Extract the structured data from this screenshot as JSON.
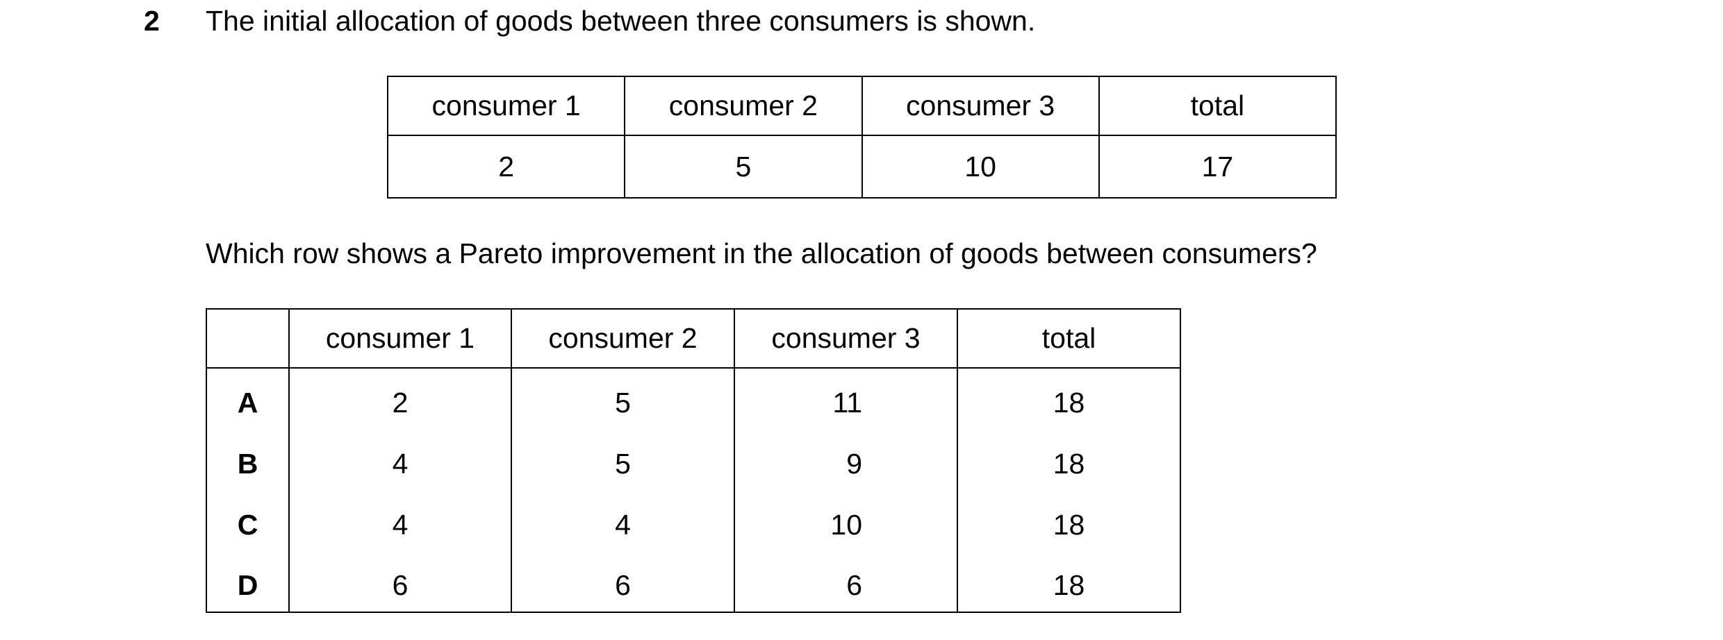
{
  "question": {
    "number": "2",
    "text": "The initial allocation of goods between three consumers is shown."
  },
  "initial_table": {
    "headers": [
      "consumer 1",
      "consumer 2",
      "consumer 3",
      "total"
    ],
    "values": [
      2,
      5,
      10,
      17
    ]
  },
  "prompt": "Which row shows a Pareto improvement in the allocation of goods between consumers?",
  "options_table": {
    "headers": [
      "consumer 1",
      "consumer 2",
      "consumer 3",
      "total"
    ],
    "rows": [
      {
        "label": "A",
        "values": [
          2,
          5,
          11,
          18
        ]
      },
      {
        "label": "B",
        "values": [
          4,
          5,
          9,
          18
        ]
      },
      {
        "label": "C",
        "values": [
          4,
          4,
          10,
          18
        ]
      },
      {
        "label": "D",
        "values": [
          6,
          6,
          6,
          18
        ]
      }
    ]
  }
}
